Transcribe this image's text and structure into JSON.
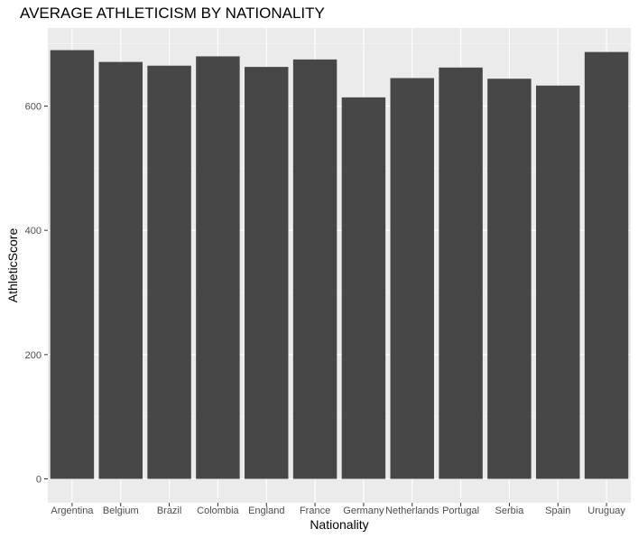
{
  "chart_data": {
    "type": "bar",
    "title": "AVERAGE ATHLETICISM BY NATIONALITY",
    "xlabel": "Nationality",
    "ylabel": "AthleticScore",
    "categories": [
      "Argentina",
      "Belgium",
      "Brazil",
      "Colombia",
      "England",
      "France",
      "Germany",
      "Netherlands",
      "Portugal",
      "Serbia",
      "Spain",
      "Uruguay"
    ],
    "values": [
      690,
      671,
      665,
      680,
      663,
      675,
      614,
      645,
      662,
      644,
      633,
      687
    ],
    "ylim": [
      0,
      720
    ],
    "yticks": [
      0,
      200,
      400,
      600
    ],
    "grid": true,
    "legend": "none",
    "colors": {
      "bar": "#474747",
      "panel": "#ebebeb",
      "grid_major": "#ffffff",
      "grid_minor": "#f5f5f5",
      "tick_text": "#4d4d4d"
    }
  }
}
